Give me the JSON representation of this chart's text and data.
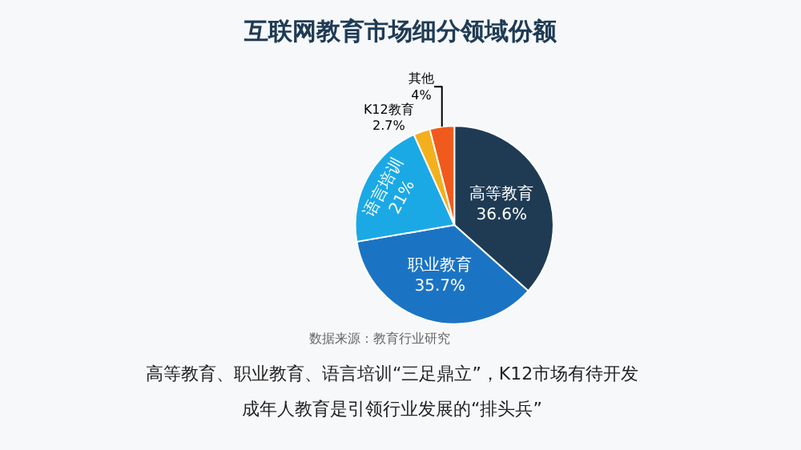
{
  "chart_data": {
    "type": "pie",
    "title": "互联网教育市场细分领域份额",
    "categories": [
      "高等教育",
      "职业教育",
      "语言培训",
      "K12教育",
      "其他"
    ],
    "values": [
      36.6,
      35.7,
      21,
      2.7,
      4
    ],
    "value_labels": [
      "36.6%",
      "35.7%",
      "21%",
      "2.7%",
      "4%"
    ],
    "colors": [
      "#1f3b54",
      "#1b74c3",
      "#1ba9e6",
      "#f4b01c",
      "#f05a1c"
    ],
    "legend": false,
    "annotations": [
      "数据来源：教育行业研究",
      "高等教育、职业教育、语言培训“三足鼎立”，K12市场有待开发",
      "成年人教育是引领行业发展的“排头兵”"
    ]
  }
}
